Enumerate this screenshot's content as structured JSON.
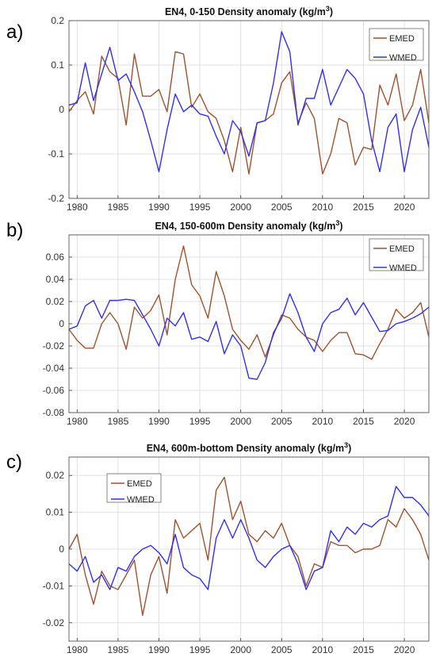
{
  "colors": {
    "EMED": "#a0522d",
    "WMED": "#3030ee",
    "grid": "#d9d9d9",
    "axis": "#333333"
  },
  "chart_data": [
    {
      "panel_label": "a)",
      "type": "line",
      "title_main": "EN4, 0-150 Density anomaly (kg/m",
      "title_sup": "3",
      "title_end": ")",
      "xlim": [
        1979,
        2023
      ],
      "ylim": [
        -0.2,
        0.2
      ],
      "xticks": [
        1980,
        1985,
        1990,
        1995,
        2000,
        2005,
        2010,
        2015,
        2020
      ],
      "yticks": [
        -0.2,
        -0.1,
        0,
        0.1,
        0.2
      ],
      "ytick_labels": [
        "-0.2",
        "-0.1",
        "0",
        "0.1",
        "0.2"
      ],
      "grid": true,
      "legend_position": "top-right",
      "x": [
        1979,
        1980,
        1981,
        1982,
        1983,
        1984,
        1985,
        1986,
        1987,
        1988,
        1989,
        1990,
        1991,
        1992,
        1993,
        1994,
        1995,
        1996,
        1997,
        1998,
        1999,
        2000,
        2001,
        2002,
        2003,
        2004,
        2005,
        2006,
        2007,
        2008,
        2009,
        2010,
        2011,
        2012,
        2013,
        2014,
        2015,
        2016,
        2017,
        2018,
        2019,
        2020,
        2021,
        2022,
        2023
      ],
      "series": [
        {
          "name": "EMED",
          "values": [
            -0.005,
            0.02,
            0.04,
            -0.01,
            0.12,
            0.085,
            0.07,
            -0.035,
            0.125,
            0.03,
            0.03,
            0.045,
            -0.005,
            0.13,
            0.125,
            0.005,
            0.035,
            -0.005,
            -0.02,
            -0.07,
            -0.14,
            -0.04,
            -0.145,
            -0.03,
            -0.025,
            -0.01,
            0.06,
            0.085,
            -0.03,
            0.015,
            -0.02,
            -0.145,
            -0.1,
            -0.02,
            -0.03,
            -0.125,
            -0.085,
            -0.09,
            0.055,
            0.01,
            0.08,
            -0.025,
            0.01,
            0.09,
            -0.03
          ]
        },
        {
          "name": "WMED",
          "values": [
            0.01,
            0.015,
            0.105,
            0.02,
            0.08,
            0.14,
            0.065,
            0.08,
            0.04,
            -0.005,
            -0.07,
            -0.14,
            -0.045,
            0.035,
            -0.005,
            0.01,
            -0.01,
            -0.015,
            -0.06,
            -0.1,
            -0.025,
            -0.05,
            -0.105,
            -0.03,
            -0.025,
            0.06,
            0.175,
            0.13,
            -0.035,
            0.025,
            0.025,
            0.09,
            0.01,
            0.05,
            0.09,
            0.07,
            0.035,
            -0.07,
            -0.14,
            -0.04,
            -0.01,
            -0.14,
            -0.045,
            0.005,
            -0.085
          ]
        }
      ]
    },
    {
      "panel_label": "b)",
      "type": "line",
      "title_main": "EN4, 150-600m Density anomaly (kg/m",
      "title_sup": "3",
      "title_end": ")",
      "xlim": [
        1979,
        2023
      ],
      "ylim": [
        -0.08,
        0.08
      ],
      "xticks": [
        1980,
        1985,
        1990,
        1995,
        2000,
        2005,
        2010,
        2015,
        2020
      ],
      "yticks": [
        -0.08,
        -0.06,
        -0.04,
        -0.02,
        0,
        0.02,
        0.04,
        0.06
      ],
      "ytick_labels": [
        "-0.08",
        "-0.06",
        "-0.04",
        "-0.02",
        "0",
        "0.02",
        "0.04",
        "0.06"
      ],
      "grid": true,
      "legend_position": "top-right",
      "x": [
        1979,
        1980,
        1981,
        1982,
        1983,
        1984,
        1985,
        1986,
        1987,
        1988,
        1989,
        1990,
        1991,
        1992,
        1993,
        1994,
        1995,
        1996,
        1997,
        1998,
        1999,
        2000,
        2001,
        2002,
        2003,
        2004,
        2005,
        2006,
        2007,
        2008,
        2009,
        2010,
        2011,
        2012,
        2013,
        2014,
        2015,
        2016,
        2017,
        2018,
        2019,
        2020,
        2021,
        2022,
        2023
      ],
      "series": [
        {
          "name": "EMED",
          "values": [
            -0.005,
            -0.015,
            -0.022,
            -0.022,
            0,
            0.01,
            0,
            -0.023,
            0.015,
            0.005,
            0.012,
            0.026,
            -0.01,
            0.04,
            0.07,
            0.035,
            0.025,
            0.005,
            0.047,
            0.025,
            -0.005,
            -0.015,
            -0.023,
            -0.01,
            -0.03,
            -0.01,
            0.008,
            0.005,
            -0.005,
            -0.012,
            -0.015,
            -0.025,
            -0.015,
            -0.008,
            -0.008,
            -0.027,
            -0.028,
            -0.032,
            -0.018,
            -0.005,
            0.013,
            0.005,
            0.01,
            0.019,
            -0.012
          ]
        },
        {
          "name": "WMED",
          "values": [
            -0.005,
            -0.002,
            0.016,
            0.021,
            0.005,
            0.021,
            0.021,
            0.022,
            0.021,
            0.008,
            -0.005,
            -0.02,
            0.005,
            -0.002,
            0.01,
            -0.014,
            -0.012,
            -0.016,
            0.002,
            -0.027,
            -0.01,
            -0.02,
            -0.049,
            -0.05,
            -0.035,
            -0.008,
            0.005,
            0.027,
            0.01,
            -0.012,
            -0.025,
            0,
            0.01,
            0.013,
            0.023,
            0.008,
            0.019,
            0.006,
            -0.007,
            -0.006,
            0,
            0.002,
            0.005,
            0.009,
            0.015
          ]
        }
      ]
    },
    {
      "panel_label": "c)",
      "type": "line",
      "title_main": "EN4, 600m-bottom Density anomaly (kg/m",
      "title_sup": "3",
      "title_end": ")",
      "xlim": [
        1979,
        2023
      ],
      "ylim": [
        -0.025,
        0.025
      ],
      "xticks": [
        1980,
        1985,
        1990,
        1995,
        2000,
        2005,
        2010,
        2015,
        2020
      ],
      "yticks": [
        -0.02,
        -0.01,
        0,
        0.01,
        0.02
      ],
      "ytick_labels": [
        "-0.02",
        "-0.01",
        "0",
        "0.01",
        "0.02"
      ],
      "grid": true,
      "legend_position": "top-left",
      "x": [
        1979,
        1980,
        1981,
        1982,
        1983,
        1984,
        1985,
        1986,
        1987,
        1988,
        1989,
        1990,
        1991,
        1992,
        1993,
        1994,
        1995,
        1996,
        1997,
        1998,
        1999,
        2000,
        2001,
        2002,
        2003,
        2004,
        2005,
        2006,
        2007,
        2008,
        2009,
        2010,
        2011,
        2012,
        2013,
        2014,
        2015,
        2016,
        2017,
        2018,
        2019,
        2020,
        2021,
        2022,
        2023
      ],
      "series": [
        {
          "name": "EMED",
          "values": [
            0,
            0.004,
            -0.007,
            -0.015,
            -0.006,
            -0.01,
            -0.011,
            -0.007,
            -0.003,
            -0.018,
            -0.007,
            -0.002,
            -0.012,
            0.008,
            0.003,
            0.005,
            0.007,
            -0.003,
            0.016,
            0.0195,
            0.008,
            0.013,
            0.004,
            0.002,
            0.005,
            0.003,
            0.007,
            0.001,
            -0.002,
            -0.01,
            -0.004,
            -0.005,
            0.002,
            0.001,
            0.001,
            -0.001,
            0.0,
            0.0,
            0.001,
            0.008,
            0.006,
            0.011,
            0.008,
            0.004,
            -0.003
          ]
        },
        {
          "name": "WMED",
          "values": [
            -0.004,
            -0.006,
            -0.002,
            -0.009,
            -0.007,
            -0.011,
            -0.005,
            -0.006,
            -0.002,
            0.0,
            0.001,
            -0.001,
            -0.004,
            0.004,
            -0.005,
            -0.007,
            -0.008,
            -0.011,
            0.003,
            0.008,
            0.003,
            0.008,
            0.003,
            -0.003,
            -0.005,
            -0.002,
            0.0,
            0.001,
            -0.004,
            -0.011,
            -0.006,
            -0.005,
            0.005,
            0.002,
            0.006,
            0.004,
            0.007,
            0.006,
            0.008,
            0.009,
            0.017,
            0.014,
            0.014,
            0.012,
            0.009
          ]
        }
      ]
    }
  ]
}
